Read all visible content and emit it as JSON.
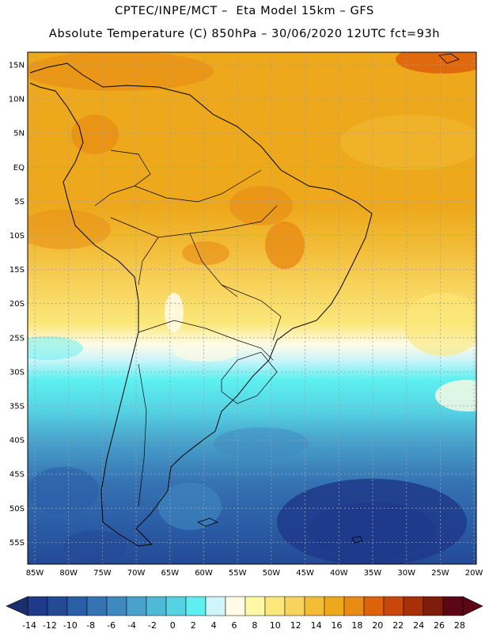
{
  "title_line1": "CPTEC/INPE/MCT –  Eta Model 15km – GFS",
  "title_line2": "Absolute Temperature (C) 850hPa – 30/06/2020 12UTC fct=93h",
  "lat_labels": [
    "15N",
    "10N",
    "5N",
    "EQ",
    "5S",
    "10S",
    "15S",
    "20S",
    "25S",
    "30S",
    "35S",
    "40S",
    "45S",
    "50S",
    "55S"
  ],
  "lon_labels": [
    "85W",
    "80W",
    "75W",
    "70W",
    "65W",
    "60W",
    "55W",
    "50W",
    "45W",
    "40W",
    "35W",
    "30W",
    "25W",
    "20W"
  ],
  "colorbar": {
    "labels": [
      "-14",
      "-12",
      "-10",
      "-8",
      "-6",
      "-4",
      "-2",
      "0",
      "2",
      "4",
      "6",
      "8",
      "10",
      "12",
      "14",
      "16",
      "18",
      "20",
      "22",
      "24",
      "26",
      "28"
    ],
    "colors": [
      "#1e3a8a",
      "#244a96",
      "#2b5ea6",
      "#3573b3",
      "#3f89bf",
      "#48a2cb",
      "#4fbad6",
      "#55d3e3",
      "#5ef0f0",
      "#cff4fa",
      "#fffbe4",
      "#fdf8a6",
      "#fbe77a",
      "#f8d45d",
      "#f2bc37",
      "#eda81b",
      "#e88b14",
      "#de620c",
      "#c9470a",
      "#a83008",
      "#7f1d0c",
      "#5c0716"
    ]
  }
}
